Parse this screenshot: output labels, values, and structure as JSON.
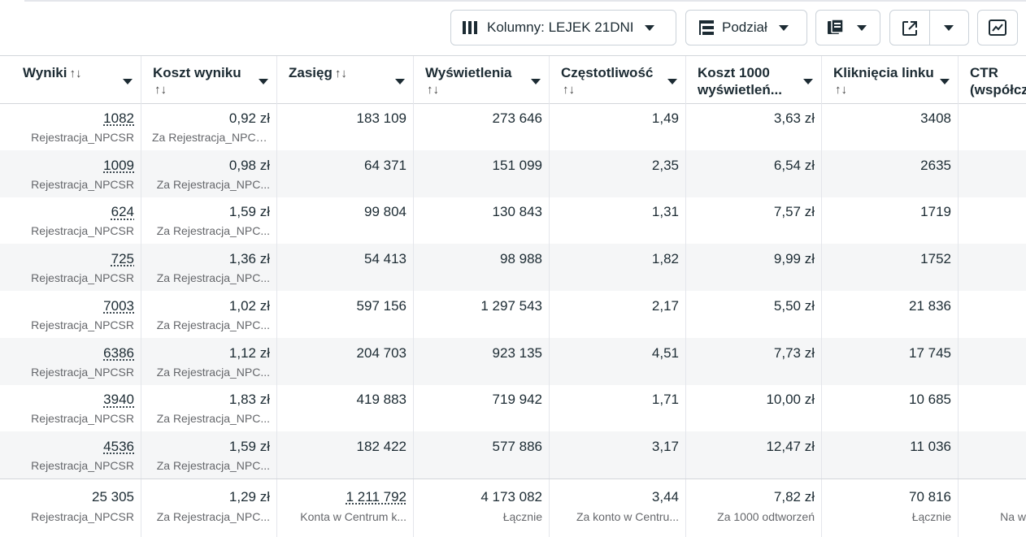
{
  "toolbar": {
    "columns_label": "Kolumny: LEJEK 21DNI",
    "breakdown_label": "Podział"
  },
  "headers": [
    {
      "title": "Wyniki",
      "sort": "↑↓"
    },
    {
      "title": "Koszt wyniku",
      "sort": "↑↓"
    },
    {
      "title": "Zasięg",
      "sort": "↑↓"
    },
    {
      "title": "Wyświetlenia",
      "sort": "↑↓"
    },
    {
      "title": "Częstotliwość",
      "sort": "↑↓"
    },
    {
      "title": "Koszt 1000",
      "title2": "wyświetleń...",
      "sort": ""
    },
    {
      "title": "Kliknięcia linku",
      "sort": "↑↓"
    },
    {
      "title": "CTR",
      "title2": "(współcz",
      "sort": ""
    }
  ],
  "rows": [
    {
      "wyniki": "1082",
      "wyniki_sub": "Rejestracja_NPCSR",
      "koszt": "0,92 zł",
      "koszt_sub": "Za Rejestracja_NPCSR",
      "zasieg": "183 109",
      "wysw": "273 646",
      "czest": "1,49",
      "k1000": "3,63 zł",
      "klik": "3408"
    },
    {
      "wyniki": "1009",
      "wyniki_sub": "Rejestracja_NPCSR",
      "koszt": "0,98 zł",
      "koszt_sub": "Za Rejestracja_NPC...",
      "zasieg": "64 371",
      "wysw": "151 099",
      "czest": "2,35",
      "k1000": "6,54 zł",
      "klik": "2635"
    },
    {
      "wyniki": "624",
      "wyniki_sub": "Rejestracja_NPCSR",
      "koszt": "1,59 zł",
      "koszt_sub": "Za Rejestracja_NPC...",
      "zasieg": "99 804",
      "wysw": "130 843",
      "czest": "1,31",
      "k1000": "7,57 zł",
      "klik": "1719"
    },
    {
      "wyniki": "725",
      "wyniki_sub": "Rejestracja_NPCSR",
      "koszt": "1,36 zł",
      "koszt_sub": "Za Rejestracja_NPC...",
      "zasieg": "54 413",
      "wysw": "98 988",
      "czest": "1,82",
      "k1000": "9,99 zł",
      "klik": "1752"
    },
    {
      "wyniki": "7003",
      "wyniki_sub": "Rejestracja_NPCSR",
      "koszt": "1,02 zł",
      "koszt_sub": "Za Rejestracja_NPC...",
      "zasieg": "597 156",
      "wysw": "1 297 543",
      "czest": "2,17",
      "k1000": "5,50 zł",
      "klik": "21 836"
    },
    {
      "wyniki": "6386",
      "wyniki_sub": "Rejestracja_NPCSR",
      "koszt": "1,12 zł",
      "koszt_sub": "Za Rejestracja_NPC...",
      "zasieg": "204 703",
      "wysw": "923 135",
      "czest": "4,51",
      "k1000": "7,73 zł",
      "klik": "17 745"
    },
    {
      "wyniki": "3940",
      "wyniki_sub": "Rejestracja_NPCSR",
      "koszt": "1,83 zł",
      "koszt_sub": "Za Rejestracja_NPC...",
      "zasieg": "419 883",
      "wysw": "719 942",
      "czest": "1,71",
      "k1000": "10,00 zł",
      "klik": "10 685"
    },
    {
      "wyniki": "4536",
      "wyniki_sub": "Rejestracja_NPCSR",
      "koszt": "1,59 zł",
      "koszt_sub": "Za Rejestracja_NPC...",
      "zasieg": "182 422",
      "wysw": "577 886",
      "czest": "3,17",
      "k1000": "12,47 zł",
      "klik": "11 036"
    }
  ],
  "footer": {
    "wyniki": "25 305",
    "wyniki_sub": "Rejestracja_NPCSR",
    "koszt": "1,29 zł",
    "koszt_sub": "Za Rejestracja_NPC...",
    "zasieg": "1 211 792",
    "zasieg_sub": "Konta w Centrum k...",
    "wysw": "4 173 082",
    "wysw_sub": "Łącznie",
    "czest": "3,44",
    "czest_sub": "Za konto w Centru...",
    "k1000": "7,82 zł",
    "k1000_sub": "Za 1000 odtworzeń",
    "klik": "70 816",
    "klik_sub": "Łącznie",
    "ctr_sub": "Na w"
  }
}
